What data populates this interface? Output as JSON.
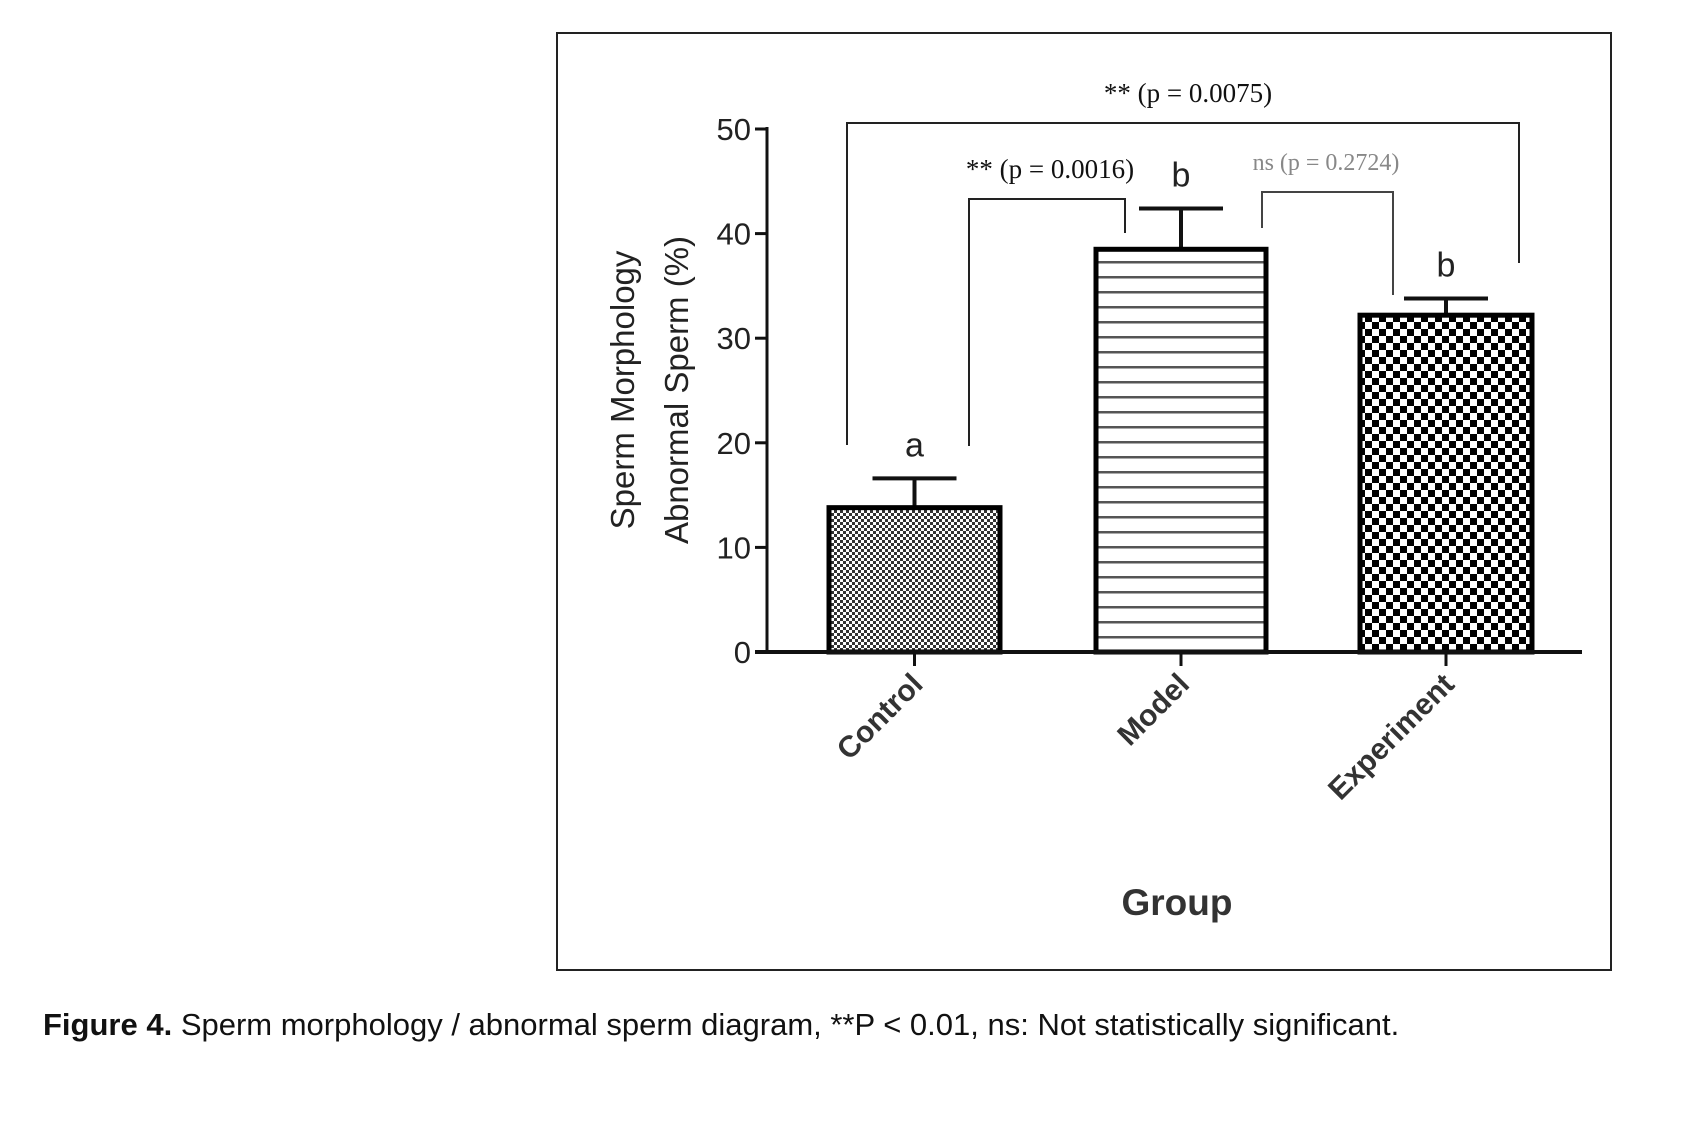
{
  "chart_data": {
    "type": "bar",
    "categories": [
      "Control",
      "Model",
      "Experiment"
    ],
    "values": [
      13.8,
      38.5,
      32.2
    ],
    "error_upper": [
      16.6,
      42.4,
      33.8
    ],
    "patterns": [
      "fine-checker",
      "horizontal-lines",
      "coarse-checker"
    ],
    "group_letters": [
      "a",
      "b",
      "b"
    ],
    "xlabel": "Group",
    "ylabel_line1": "Sperm Morphology",
    "ylabel_line2": "Abnormal Sperm (%)",
    "ylim": [
      0,
      50
    ],
    "yticks": [
      "0",
      "10",
      "20",
      "30",
      "40",
      "50"
    ],
    "yticks_values": [
      0,
      10,
      20,
      30,
      40,
      50
    ],
    "comparisons": [
      {
        "from": "Control",
        "to": "Experiment",
        "label": "** (p = 0.0075)",
        "color": "#111111"
      },
      {
        "from": "Control",
        "to": "Model",
        "label": "** (p = 0.0016)",
        "color": "#111111"
      },
      {
        "from": "Model",
        "to": "Experiment",
        "label": "ns (p = 0.2724)",
        "color": "#888888"
      }
    ],
    "grid": false
  },
  "caption": {
    "label": "Figure 4.",
    "text": " Sperm morphology / abnormal sperm diagram, **P < 0.01, ns: Not statistically significant."
  }
}
